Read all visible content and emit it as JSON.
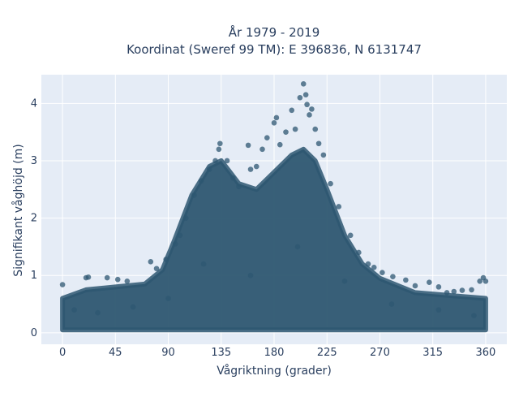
{
  "chart_data": {
    "type": "scatter",
    "title": "År 1979 - 2019",
    "subtitle": "Koordinat (Sweref 99 TM): E 396836, N 6131747",
    "xlabel": "Vågriktning (grader)",
    "ylabel": "Signifikant våghöjd (m)",
    "xlim": [
      -18,
      378
    ],
    "ylim": [
      -0.2,
      4.5
    ],
    "x_ticks": [
      0,
      45,
      90,
      135,
      180,
      225,
      270,
      315,
      360
    ],
    "y_ticks": [
      0,
      1,
      2,
      3,
      4
    ],
    "grid": true,
    "legend": "none",
    "marker_color": "#2e5771",
    "background_color": "#e5ecf6",
    "envelope": {
      "x": [
        0,
        20,
        45,
        70,
        85,
        95,
        110,
        125,
        135,
        150,
        165,
        180,
        195,
        205,
        215,
        225,
        240,
        255,
        270,
        300,
        330,
        360
      ],
      "y_upper": [
        0.6,
        0.75,
        0.8,
        0.85,
        1.1,
        1.6,
        2.4,
        2.9,
        3.0,
        2.6,
        2.5,
        2.8,
        3.1,
        3.2,
        3.0,
        2.5,
        1.7,
        1.2,
        0.95,
        0.7,
        0.65,
        0.6
      ],
      "y_lower": [
        0.05,
        0.05,
        0.05,
        0.05,
        0.05,
        0.05,
        0.05,
        0.05,
        0.05,
        0.05,
        0.05,
        0.05,
        0.05,
        0.05,
        0.05,
        0.05,
        0.05,
        0.05,
        0.05,
        0.05,
        0.05,
        0.05
      ]
    },
    "points": [
      {
        "x": 0,
        "y": 0.84
      },
      {
        "x": 20,
        "y": 0.96
      },
      {
        "x": 22,
        "y": 0.97
      },
      {
        "x": 38,
        "y": 0.96
      },
      {
        "x": 47,
        "y": 0.93
      },
      {
        "x": 55,
        "y": 0.9
      },
      {
        "x": 75,
        "y": 1.24
      },
      {
        "x": 80,
        "y": 1.12
      },
      {
        "x": 88,
        "y": 1.28
      },
      {
        "x": 96,
        "y": 1.55
      },
      {
        "x": 100,
        "y": 1.7
      },
      {
        "x": 105,
        "y": 2.0
      },
      {
        "x": 112,
        "y": 2.4
      },
      {
        "x": 118,
        "y": 2.65
      },
      {
        "x": 125,
        "y": 2.85
      },
      {
        "x": 130,
        "y": 3.0
      },
      {
        "x": 133,
        "y": 3.2
      },
      {
        "x": 134,
        "y": 3.3
      },
      {
        "x": 140,
        "y": 3.0
      },
      {
        "x": 145,
        "y": 2.7
      },
      {
        "x": 150,
        "y": 2.55
      },
      {
        "x": 158,
        "y": 3.27
      },
      {
        "x": 160,
        "y": 2.85
      },
      {
        "x": 165,
        "y": 2.9
      },
      {
        "x": 170,
        "y": 3.2
      },
      {
        "x": 174,
        "y": 3.4
      },
      {
        "x": 180,
        "y": 3.66
      },
      {
        "x": 182,
        "y": 3.75
      },
      {
        "x": 185,
        "y": 3.28
      },
      {
        "x": 190,
        "y": 3.5
      },
      {
        "x": 195,
        "y": 3.88
      },
      {
        "x": 198,
        "y": 3.55
      },
      {
        "x": 202,
        "y": 4.1
      },
      {
        "x": 205,
        "y": 4.34
      },
      {
        "x": 207,
        "y": 4.15
      },
      {
        "x": 208,
        "y": 3.98
      },
      {
        "x": 210,
        "y": 3.8
      },
      {
        "x": 212,
        "y": 3.9
      },
      {
        "x": 215,
        "y": 3.55
      },
      {
        "x": 218,
        "y": 3.3
      },
      {
        "x": 222,
        "y": 3.1
      },
      {
        "x": 228,
        "y": 2.6
      },
      {
        "x": 235,
        "y": 2.2
      },
      {
        "x": 245,
        "y": 1.7
      },
      {
        "x": 252,
        "y": 1.4
      },
      {
        "x": 260,
        "y": 1.2
      },
      {
        "x": 265,
        "y": 1.14
      },
      {
        "x": 272,
        "y": 1.05
      },
      {
        "x": 281,
        "y": 0.98
      },
      {
        "x": 292,
        "y": 0.92
      },
      {
        "x": 300,
        "y": 0.82
      },
      {
        "x": 312,
        "y": 0.88
      },
      {
        "x": 320,
        "y": 0.8
      },
      {
        "x": 327,
        "y": 0.7
      },
      {
        "x": 333,
        "y": 0.72
      },
      {
        "x": 340,
        "y": 0.74
      },
      {
        "x": 348,
        "y": 0.75
      },
      {
        "x": 355,
        "y": 0.9
      },
      {
        "x": 358,
        "y": 0.96
      },
      {
        "x": 360,
        "y": 0.9
      },
      {
        "x": 10,
        "y": 0.4
      },
      {
        "x": 30,
        "y": 0.35
      },
      {
        "x": 60,
        "y": 0.45
      },
      {
        "x": 90,
        "y": 0.6
      },
      {
        "x": 120,
        "y": 1.2
      },
      {
        "x": 160,
        "y": 1.0
      },
      {
        "x": 200,
        "y": 1.5
      },
      {
        "x": 240,
        "y": 0.9
      },
      {
        "x": 280,
        "y": 0.5
      },
      {
        "x": 320,
        "y": 0.4
      },
      {
        "x": 350,
        "y": 0.3
      }
    ]
  }
}
